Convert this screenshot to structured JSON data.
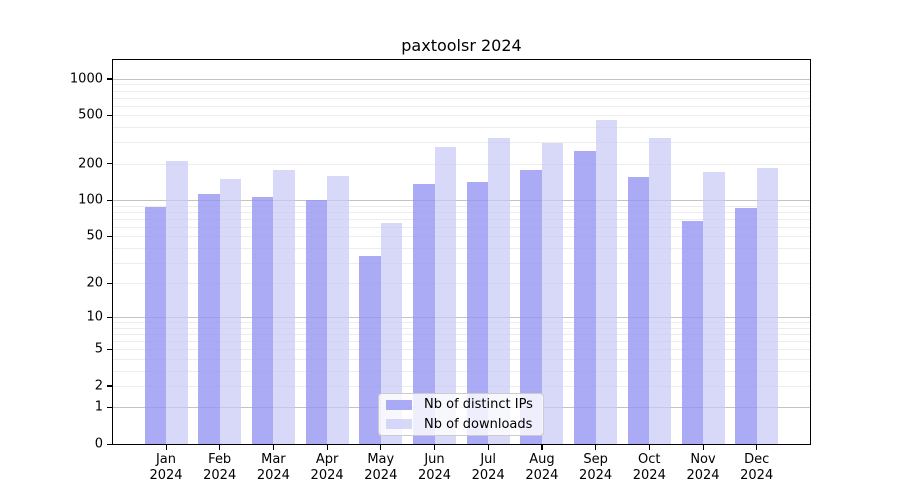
{
  "chart_data": {
    "type": "bar",
    "title": "paxtoolsr 2024",
    "categories": [
      "Jan",
      "Feb",
      "Mar",
      "Apr",
      "May",
      "Jun",
      "Jul",
      "Aug",
      "Sep",
      "Oct",
      "Nov",
      "Dec"
    ],
    "category_year": "2024",
    "series": [
      {
        "name": "Nb of distinct IPs",
        "color": "rgba(149, 149, 242, 0.8)",
        "values": [
          88,
          112,
          107,
          101,
          34,
          136,
          142,
          177,
          255,
          156,
          67,
          86
        ]
      },
      {
        "name": "Nb of downloads",
        "color": "rgba(200, 200, 245, 0.7)",
        "values": [
          212,
          151,
          177,
          157,
          65,
          273,
          324,
          295,
          461,
          324,
          170,
          184
        ]
      }
    ],
    "yscale": "log10(value+1)",
    "yticks": [
      0,
      1,
      2,
      5,
      10,
      20,
      50,
      100,
      200,
      500,
      1000
    ],
    "ylim": [
      0,
      1430
    ],
    "xlabel": "",
    "ylabel": "",
    "grid": {
      "enabled": true,
      "major_values": [
        1,
        10,
        100,
        1000
      ],
      "major_color": "#c3c3c3",
      "minor_color": "#ededed"
    },
    "legend_position": "lower center",
    "background_color": "#ffffff",
    "axis_color": "#000000"
  }
}
